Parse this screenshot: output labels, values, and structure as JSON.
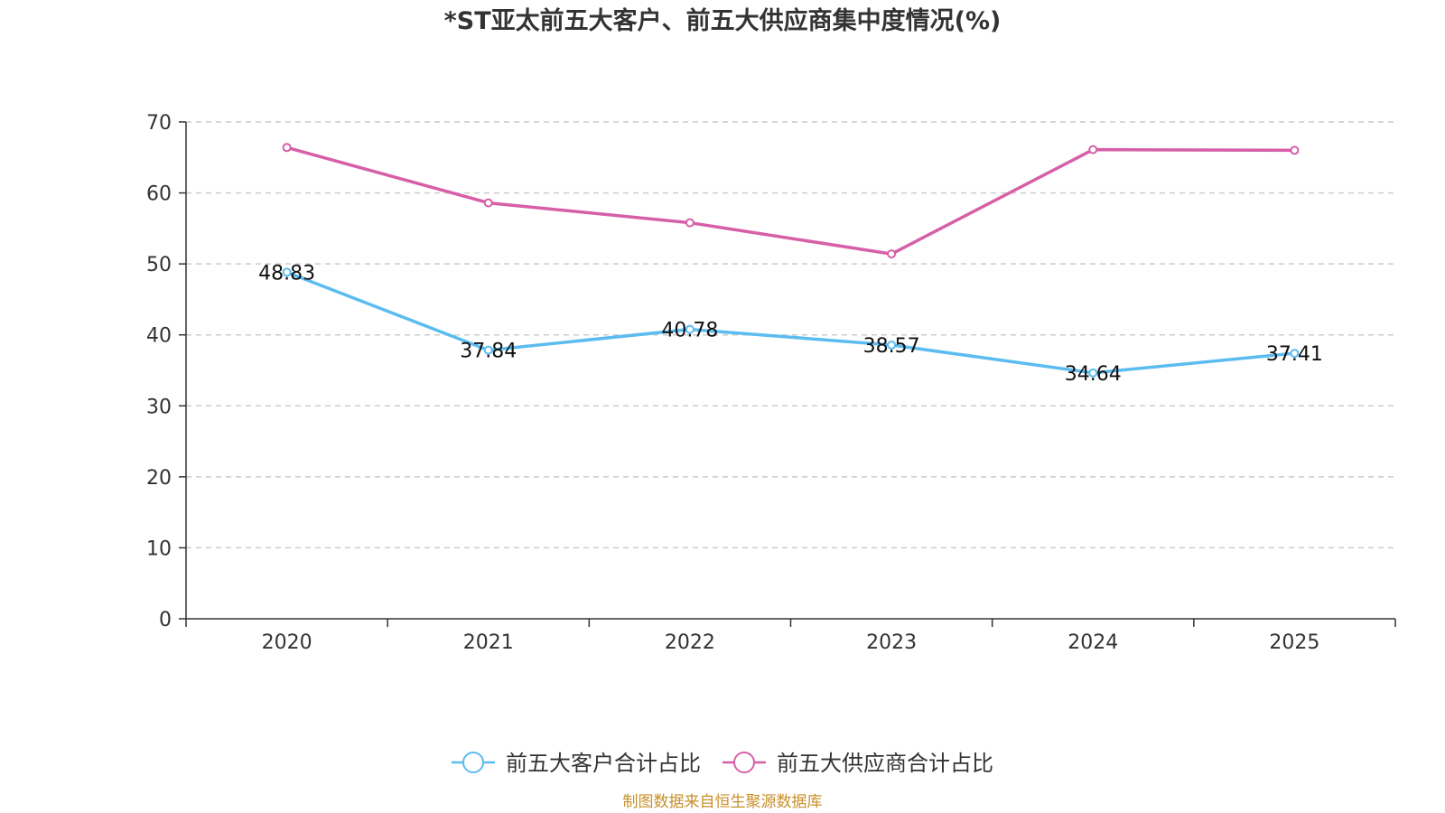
{
  "chart_data": {
    "type": "line",
    "title": "*ST亚太前五大客户、前五大供应商集中度情况(%)",
    "categories": [
      "2020",
      "2021",
      "2022",
      "2023",
      "2024",
      "2025"
    ],
    "ylim": [
      0,
      70
    ],
    "yticks": [
      0,
      10,
      20,
      30,
      40,
      50,
      60,
      70
    ],
    "grid": true,
    "legend_position": "bottom-center",
    "series": [
      {
        "name": "前五大客户合计占比",
        "color": "#5bbcf0",
        "values": [
          48.83,
          37.84,
          40.78,
          38.57,
          34.64,
          37.41
        ],
        "labels": [
          "48.83",
          "37.84",
          "40.78",
          "38.57",
          "34.64",
          "37.41"
        ],
        "show_labels": true
      },
      {
        "name": "前五大供应商合计占比",
        "color": "#d65fa8",
        "values": [
          66.4,
          58.6,
          55.8,
          51.4,
          66.1,
          66.0
        ],
        "show_labels": false
      }
    ]
  },
  "source": "制图数据来自恒生聚源数据库"
}
